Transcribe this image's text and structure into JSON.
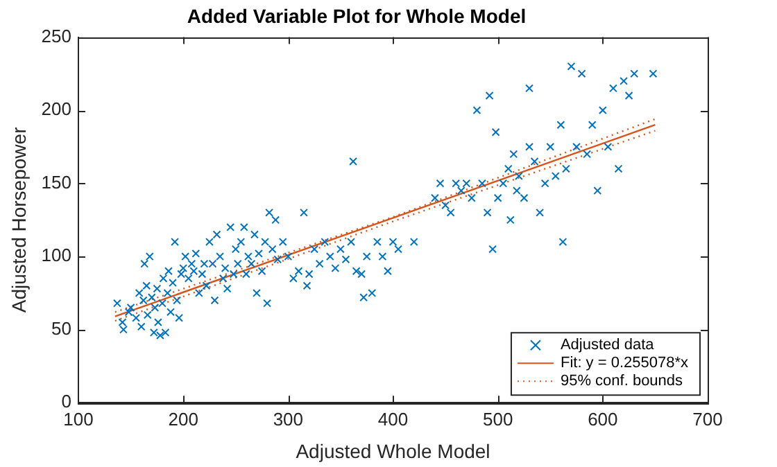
{
  "chart_data": {
    "type": "scatter",
    "title": "Added Variable Plot for Whole Model",
    "xlabel": "Adjusted Whole Model",
    "ylabel": "Adjusted Horsepower",
    "xlim": [
      100,
      700
    ],
    "xticks": [
      100,
      200,
      300,
      400,
      500,
      600,
      700
    ],
    "ylim": [
      0,
      250
    ],
    "yticks": [
      0,
      50,
      100,
      150,
      200,
      250
    ],
    "grid": false,
    "legend": "bottom right",
    "series": [
      {
        "name": "Adjusted data",
        "marker": "cross",
        "color": "#0072bd",
        "x": [
          137,
          142,
          143,
          148,
          150,
          155,
          158,
          160,
          162,
          163,
          165,
          166,
          168,
          170,
          172,
          173,
          175,
          176,
          178,
          180,
          181,
          183,
          185,
          186,
          188,
          190,
          192,
          194,
          196,
          198,
          200,
          202,
          205,
          208,
          210,
          212,
          215,
          218,
          220,
          222,
          225,
          228,
          230,
          232,
          235,
          238,
          240,
          242,
          245,
          248,
          250,
          252,
          255,
          258,
          260,
          262,
          265,
          268,
          270,
          272,
          275,
          278,
          280,
          282,
          285,
          288,
          290,
          295,
          300,
          305,
          310,
          315,
          318,
          320,
          325,
          330,
          335,
          340,
          345,
          350,
          355,
          360,
          362,
          365,
          370,
          372,
          375,
          380,
          385,
          390,
          395,
          400,
          405,
          420,
          440,
          445,
          450,
          455,
          460,
          465,
          470,
          475,
          480,
          485,
          490,
          492,
          495,
          498,
          500,
          505,
          510,
          512,
          515,
          518,
          520,
          525,
          530,
          530,
          535,
          540,
          545,
          550,
          555,
          560,
          562,
          565,
          570,
          575,
          580,
          585,
          590,
          595,
          600,
          605,
          610,
          615,
          620,
          625,
          630,
          648
        ],
        "values": [
          68,
          55,
          50,
          62,
          65,
          58,
          75,
          52,
          70,
          95,
          80,
          60,
          100,
          72,
          48,
          65,
          78,
          55,
          46,
          68,
          85,
          48,
          75,
          90,
          62,
          82,
          110,
          70,
          58,
          88,
          92,
          100,
          85,
          95,
          90,
          102,
          75,
          88,
          95,
          80,
          110,
          95,
          70,
          115,
          100,
          85,
          92,
          78,
          120,
          88,
          105,
          95,
          110,
          120,
          88,
          100,
          95,
          115,
          75,
          102,
          90,
          110,
          68,
          130,
          105,
          125,
          98,
          110,
          100,
          85,
          90,
          130,
          80,
          88,
          105,
          95,
          110,
          100,
          92,
          105,
          98,
          110,
          165,
          90,
          88,
          72,
          100,
          75,
          110,
          100,
          90,
          110,
          105,
          110,
          140,
          150,
          135,
          130,
          150,
          145,
          150,
          140,
          200,
          150,
          130,
          210,
          105,
          185,
          140,
          150,
          160,
          125,
          170,
          145,
          155,
          140,
          175,
          215,
          165,
          130,
          150,
          175,
          155,
          190,
          110,
          160,
          230,
          175,
          225,
          170,
          190,
          145,
          200,
          175,
          215,
          160,
          220,
          210,
          225,
          225
        ]
      },
      {
        "name": "Fit: y = 0.255078*x",
        "type": "line",
        "marker": "none",
        "line_style": "solid",
        "color": "#d95319",
        "x": [
          135,
          650
        ],
        "values": [
          59,
          190
        ]
      },
      {
        "name": "95% conf. bounds",
        "type": "line",
        "marker": "none",
        "line_style": "dotted",
        "color": "#d95319",
        "x": [
          135,
          400,
          650
        ],
        "values": [
          62,
          127,
          194
        ]
      },
      {
        "type": "line",
        "marker": "none",
        "line_style": "dotted",
        "color": "#d95319",
        "x": [
          135,
          400,
          650
        ],
        "values": [
          56,
          124,
          186
        ]
      }
    ]
  }
}
